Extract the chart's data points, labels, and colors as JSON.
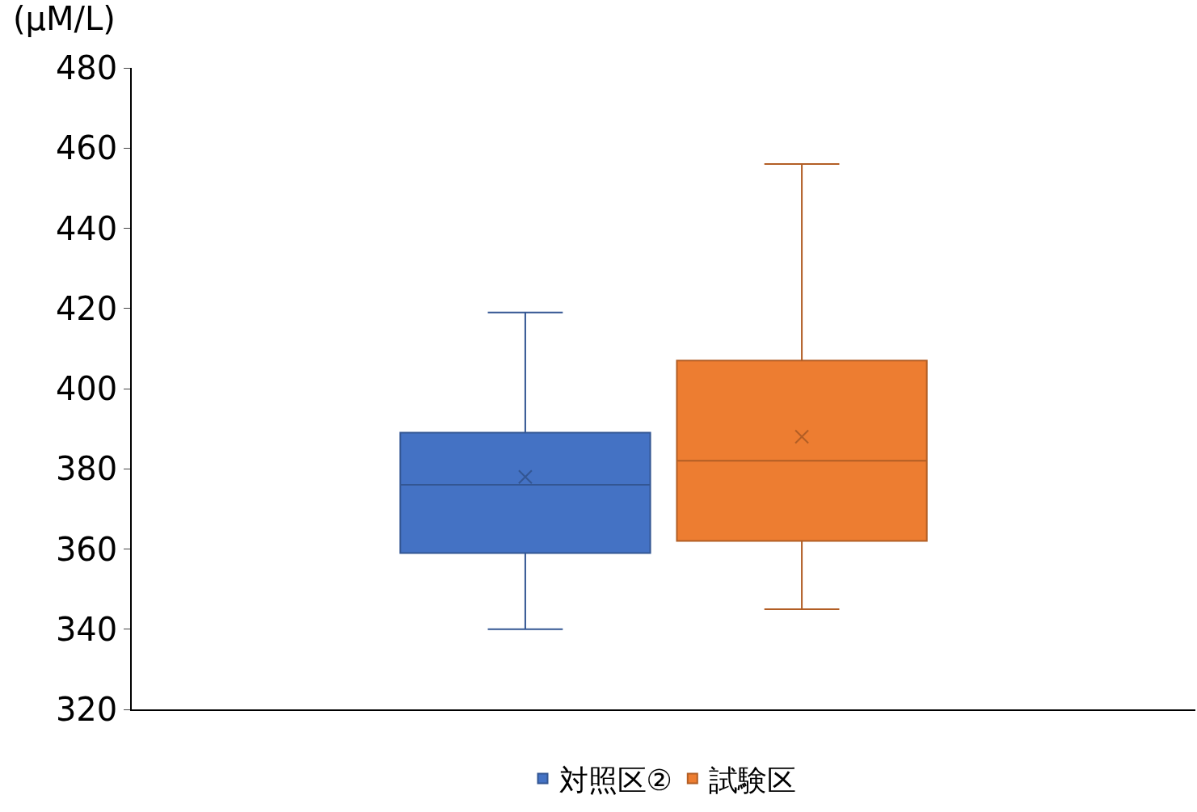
{
  "chart_data": {
    "type": "box",
    "ylabel": "(μM/L)",
    "categories": [
      null
    ],
    "series": [
      {
        "name": "対照区②",
        "color": "#4472c4",
        "boxes": [
          {
            "low": 340,
            "q1": 359,
            "median": 376,
            "q3": 389,
            "high": 419,
            "mean": 378
          }
        ]
      },
      {
        "name": "試験区",
        "color": "#ed7d31",
        "boxes": [
          {
            "low": 345,
            "q1": 362,
            "median": 382,
            "q3": 407,
            "high": 456,
            "mean": 388
          }
        ]
      }
    ],
    "ylim": [
      320,
      480
    ],
    "yticks": [
      320,
      340,
      360,
      380,
      400,
      420,
      440,
      460,
      480
    ],
    "grid": false,
    "legend": "bottom",
    "marker": "cross",
    "tick_labels": "y"
  }
}
